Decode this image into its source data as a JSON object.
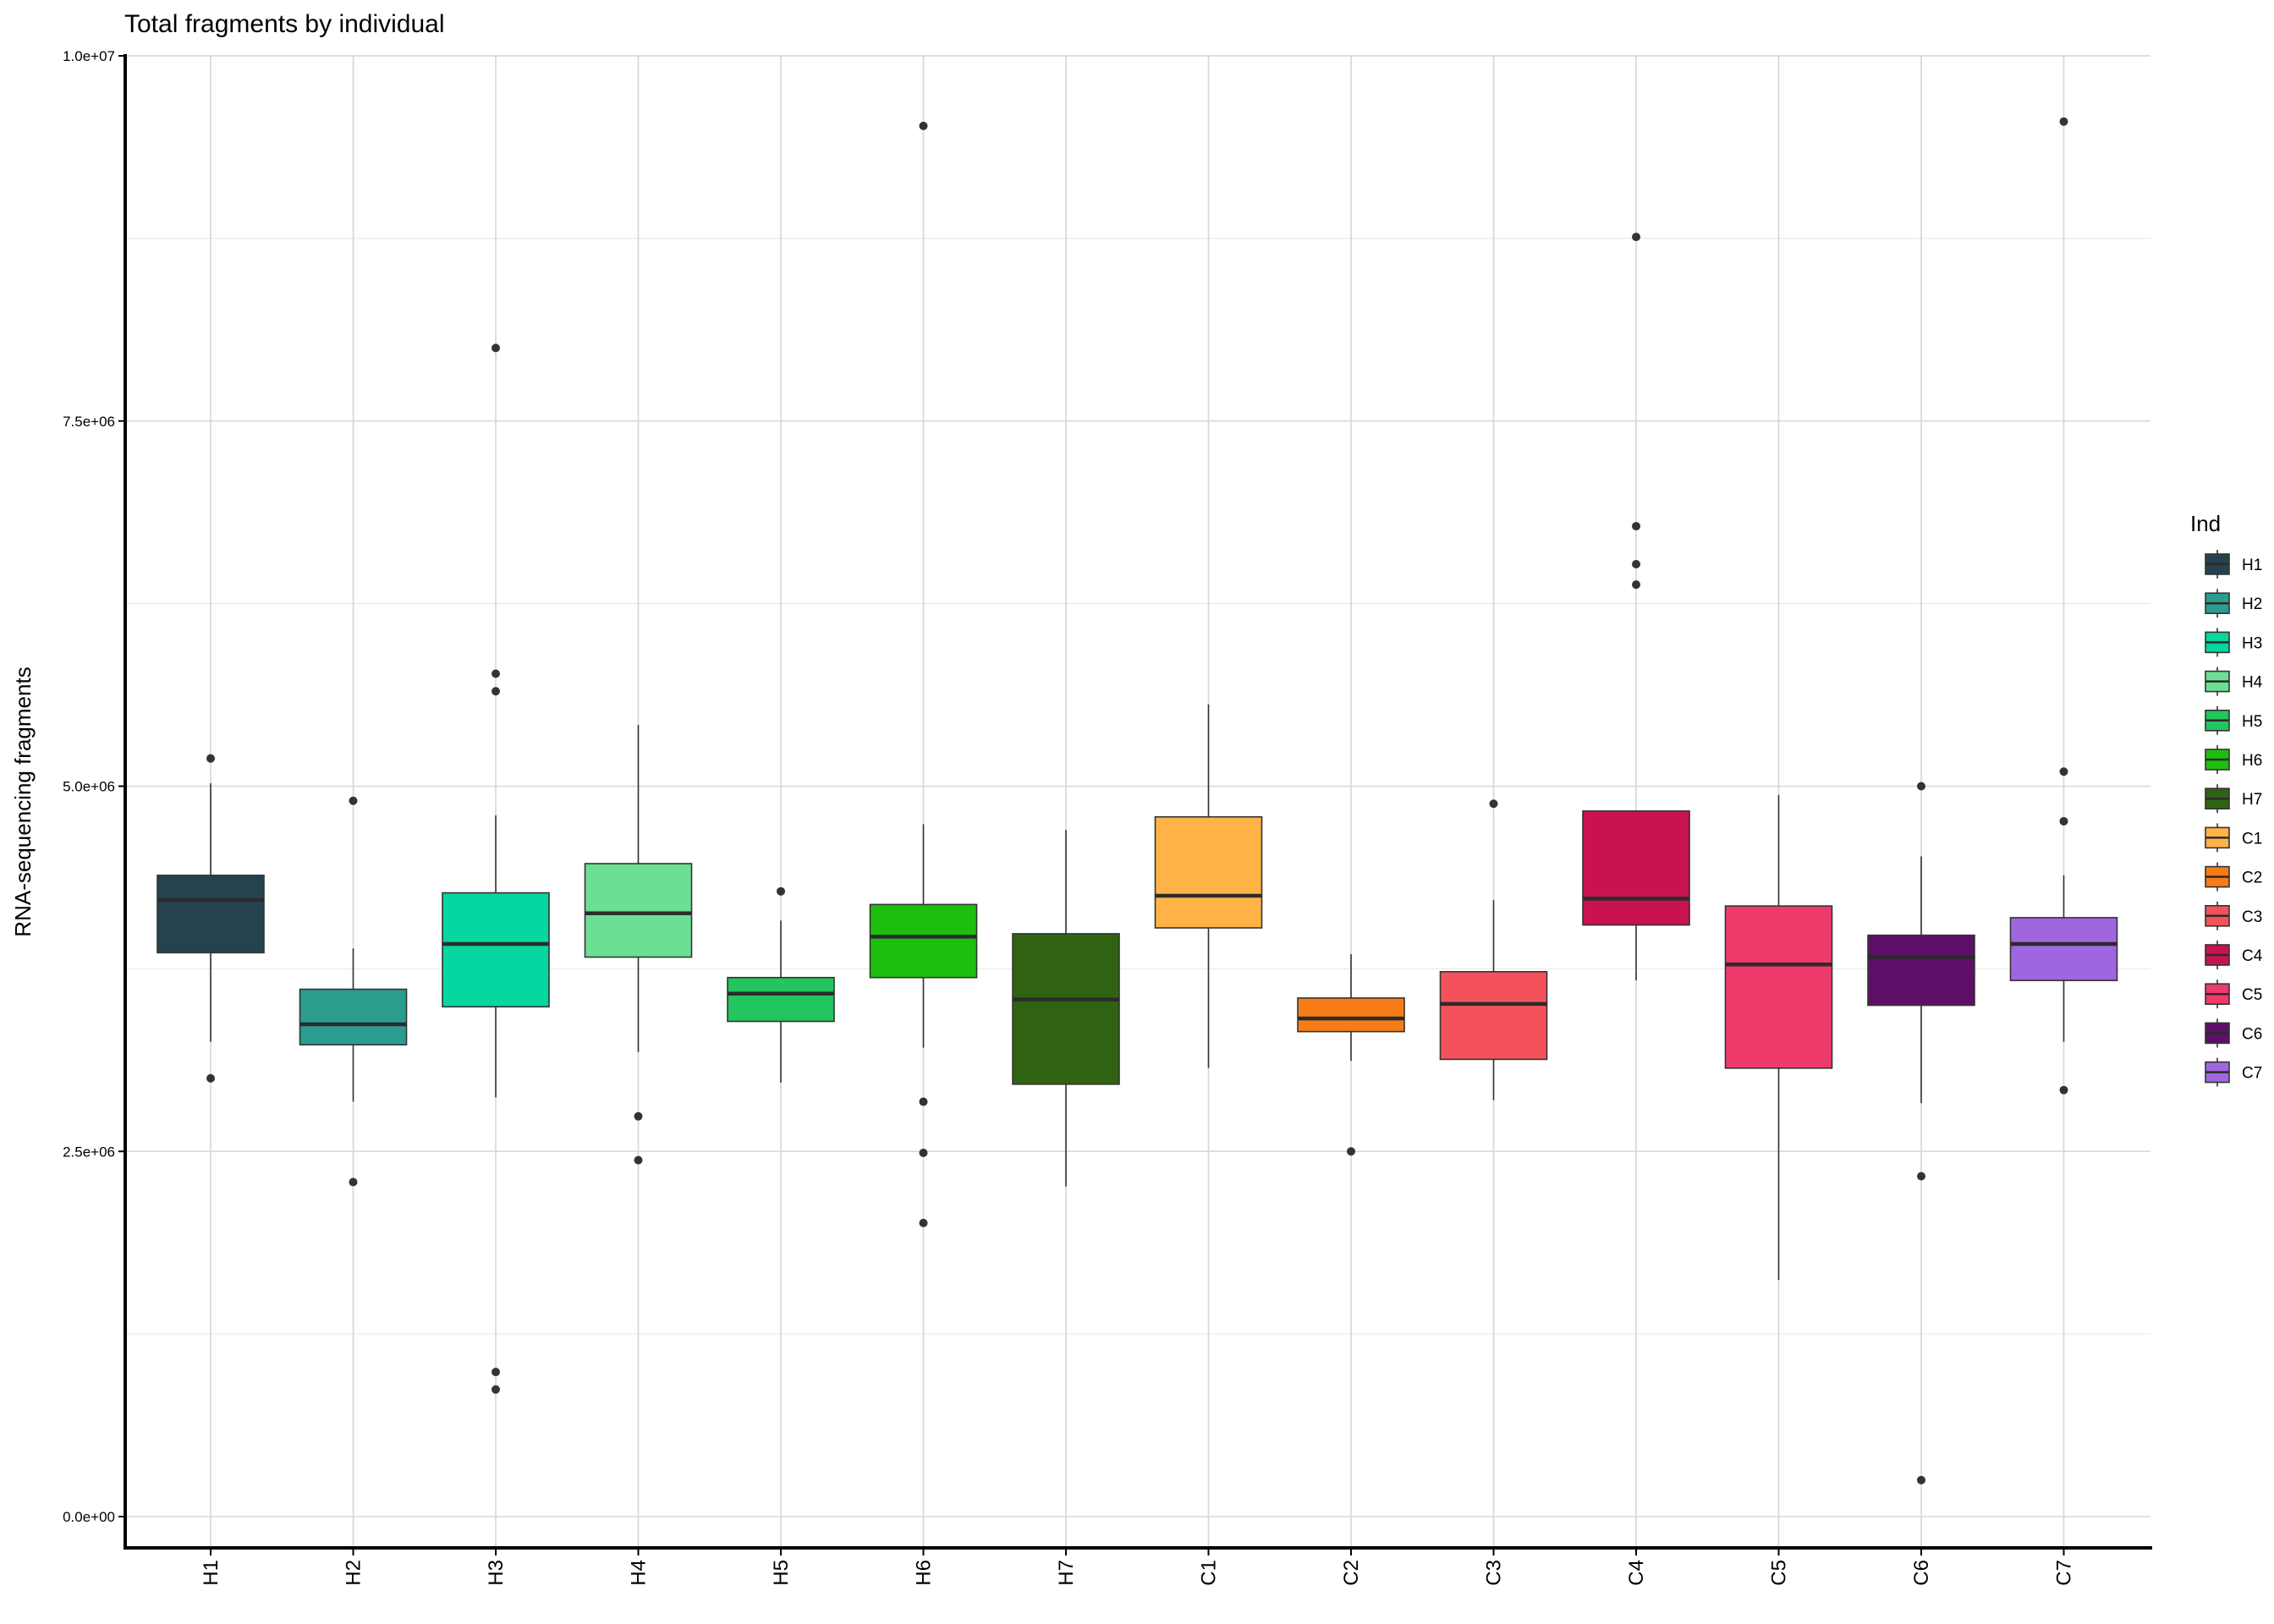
{
  "chart_data": {
    "type": "box",
    "title": "Total fragments by individual",
    "ylabel": "RNA-sequencing fragments",
    "xlabel": "",
    "ylim": [
      0,
      10000000
    ],
    "yticks": [
      0,
      2500000,
      5000000,
      7500000,
      10000000
    ],
    "ytick_labels": [
      "0.0e+00",
      "2.5e+06",
      "5.0e+06",
      "7.5e+06",
      "1.0e+07"
    ],
    "grid": true,
    "legend": {
      "title": "Ind",
      "position": "right"
    },
    "categories": [
      "H1",
      "H2",
      "H3",
      "H4",
      "H5",
      "H6",
      "H7",
      "C1",
      "C2",
      "C3",
      "C4",
      "C5",
      "C6",
      "C7"
    ],
    "series": [
      {
        "name": "H1",
        "color": "#25424F",
        "q1": 3860000,
        "median": 4220000,
        "q3": 4390000,
        "whisker_low": 3250000,
        "whisker_high": 5020000,
        "outliers": [
          5190000,
          3000000
        ]
      },
      {
        "name": "H2",
        "color": "#2A9D8F",
        "q1": 3230000,
        "median": 3370000,
        "q3": 3610000,
        "whisker_low": 2840000,
        "whisker_high": 3890000,
        "outliers": [
          4900000,
          2290000
        ]
      },
      {
        "name": "H3",
        "color": "#06D6A0",
        "q1": 3490000,
        "median": 3920000,
        "q3": 4270000,
        "whisker_low": 2870000,
        "whisker_high": 4800000,
        "outliers": [
          8000000,
          5770000,
          5650000,
          990000,
          870000
        ]
      },
      {
        "name": "H4",
        "color": "#6BE094",
        "q1": 3830000,
        "median": 4130000,
        "q3": 4470000,
        "whisker_low": 3180000,
        "whisker_high": 5420000,
        "outliers": [
          2740000,
          2440000
        ]
      },
      {
        "name": "H5",
        "color": "#22C55E",
        "q1": 3390000,
        "median": 3580000,
        "q3": 3690000,
        "whisker_low": 2970000,
        "whisker_high": 4080000,
        "outliers": [
          4280000
        ]
      },
      {
        "name": "H6",
        "color": "#1DBF0E",
        "q1": 3690000,
        "median": 3970000,
        "q3": 4190000,
        "whisker_low": 3210000,
        "whisker_high": 4740000,
        "outliers": [
          9520000,
          2840000,
          2490000,
          2010000
        ]
      },
      {
        "name": "H7",
        "color": "#2F6312",
        "q1": 2960000,
        "median": 3540000,
        "q3": 3990000,
        "whisker_low": 2260000,
        "whisker_high": 4700000,
        "outliers": []
      },
      {
        "name": "C1",
        "color": "#FFB347",
        "q1": 4030000,
        "median": 4250000,
        "q3": 4790000,
        "whisker_low": 3070000,
        "whisker_high": 5560000,
        "outliers": []
      },
      {
        "name": "C2",
        "color": "#F57C16",
        "q1": 3320000,
        "median": 3410000,
        "q3": 3550000,
        "whisker_low": 3120000,
        "whisker_high": 3850000,
        "outliers": [
          2500000
        ]
      },
      {
        "name": "C3",
        "color": "#F4525A",
        "q1": 3130000,
        "median": 3510000,
        "q3": 3730000,
        "whisker_low": 2850000,
        "whisker_high": 4220000,
        "outliers": [
          4880000
        ]
      },
      {
        "name": "C4",
        "color": "#C9134F",
        "q1": 4050000,
        "median": 4230000,
        "q3": 4830000,
        "whisker_low": 3670000,
        "whisker_high": 4830000,
        "outliers": [
          8760000,
          6780000,
          6520000,
          6380000
        ]
      },
      {
        "name": "C5",
        "color": "#EF3A6C",
        "q1": 3070000,
        "median": 3780000,
        "q3": 4180000,
        "whisker_low": 1620000,
        "whisker_high": 4940000,
        "outliers": []
      },
      {
        "name": "C6",
        "color": "#5E0F68",
        "q1": 3500000,
        "median": 3830000,
        "q3": 3980000,
        "whisker_low": 2830000,
        "whisker_high": 4520000,
        "outliers": [
          5000000,
          2330000,
          250000
        ]
      },
      {
        "name": "C7",
        "color": "#A066E0",
        "q1": 3670000,
        "median": 3920000,
        "q3": 4100000,
        "whisker_low": 3250000,
        "whisker_high": 4390000,
        "outliers": [
          9550000,
          5100000,
          4760000,
          2920000
        ]
      }
    ]
  }
}
